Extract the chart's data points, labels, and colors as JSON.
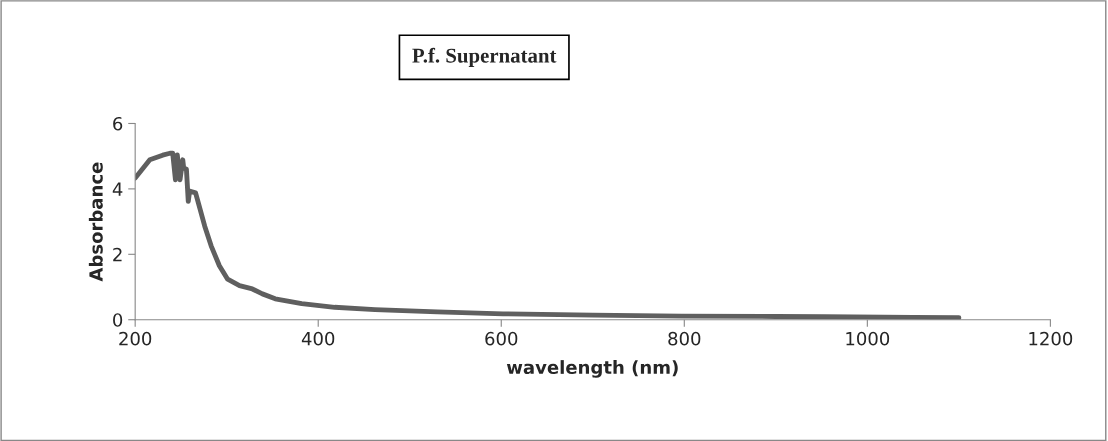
{
  "chart_data": {
    "type": "line",
    "title": "P.f. Supernatant",
    "xlabel": "wavelength (nm)",
    "ylabel": "Absorbance",
    "xlim": [
      200,
      1200
    ],
    "xticks": [
      200,
      400,
      600,
      800,
      1000,
      1200
    ],
    "ylim": [
      0,
      6
    ],
    "yticks": [
      0,
      2,
      4,
      6
    ],
    "grid": false,
    "legend": false,
    "marker": "none",
    "line_style": "solid",
    "series": [
      {
        "color": "#5f5f5f",
        "x": [
          200,
          216,
          230,
          238,
          241,
          244,
          246,
          249,
          252,
          253,
          256,
          258,
          259.5,
          266,
          270,
          276,
          283,
          292,
          301,
          314,
          328,
          339,
          353,
          382,
          418,
          462,
          530,
          602,
          700,
          797,
          900,
          953,
          1050,
          1100
        ],
        "values": [
          4.33,
          4.89,
          5.03,
          5.09,
          5.09,
          4.28,
          5.04,
          4.28,
          4.89,
          4.64,
          4.6,
          3.62,
          3.93,
          3.88,
          3.47,
          2.86,
          2.26,
          1.65,
          1.24,
          1.04,
          0.94,
          0.79,
          0.64,
          0.49,
          0.38,
          0.31,
          0.24,
          0.18,
          0.14,
          0.11,
          0.1,
          0.09,
          0.07,
          0.06
        ]
      }
    ]
  }
}
